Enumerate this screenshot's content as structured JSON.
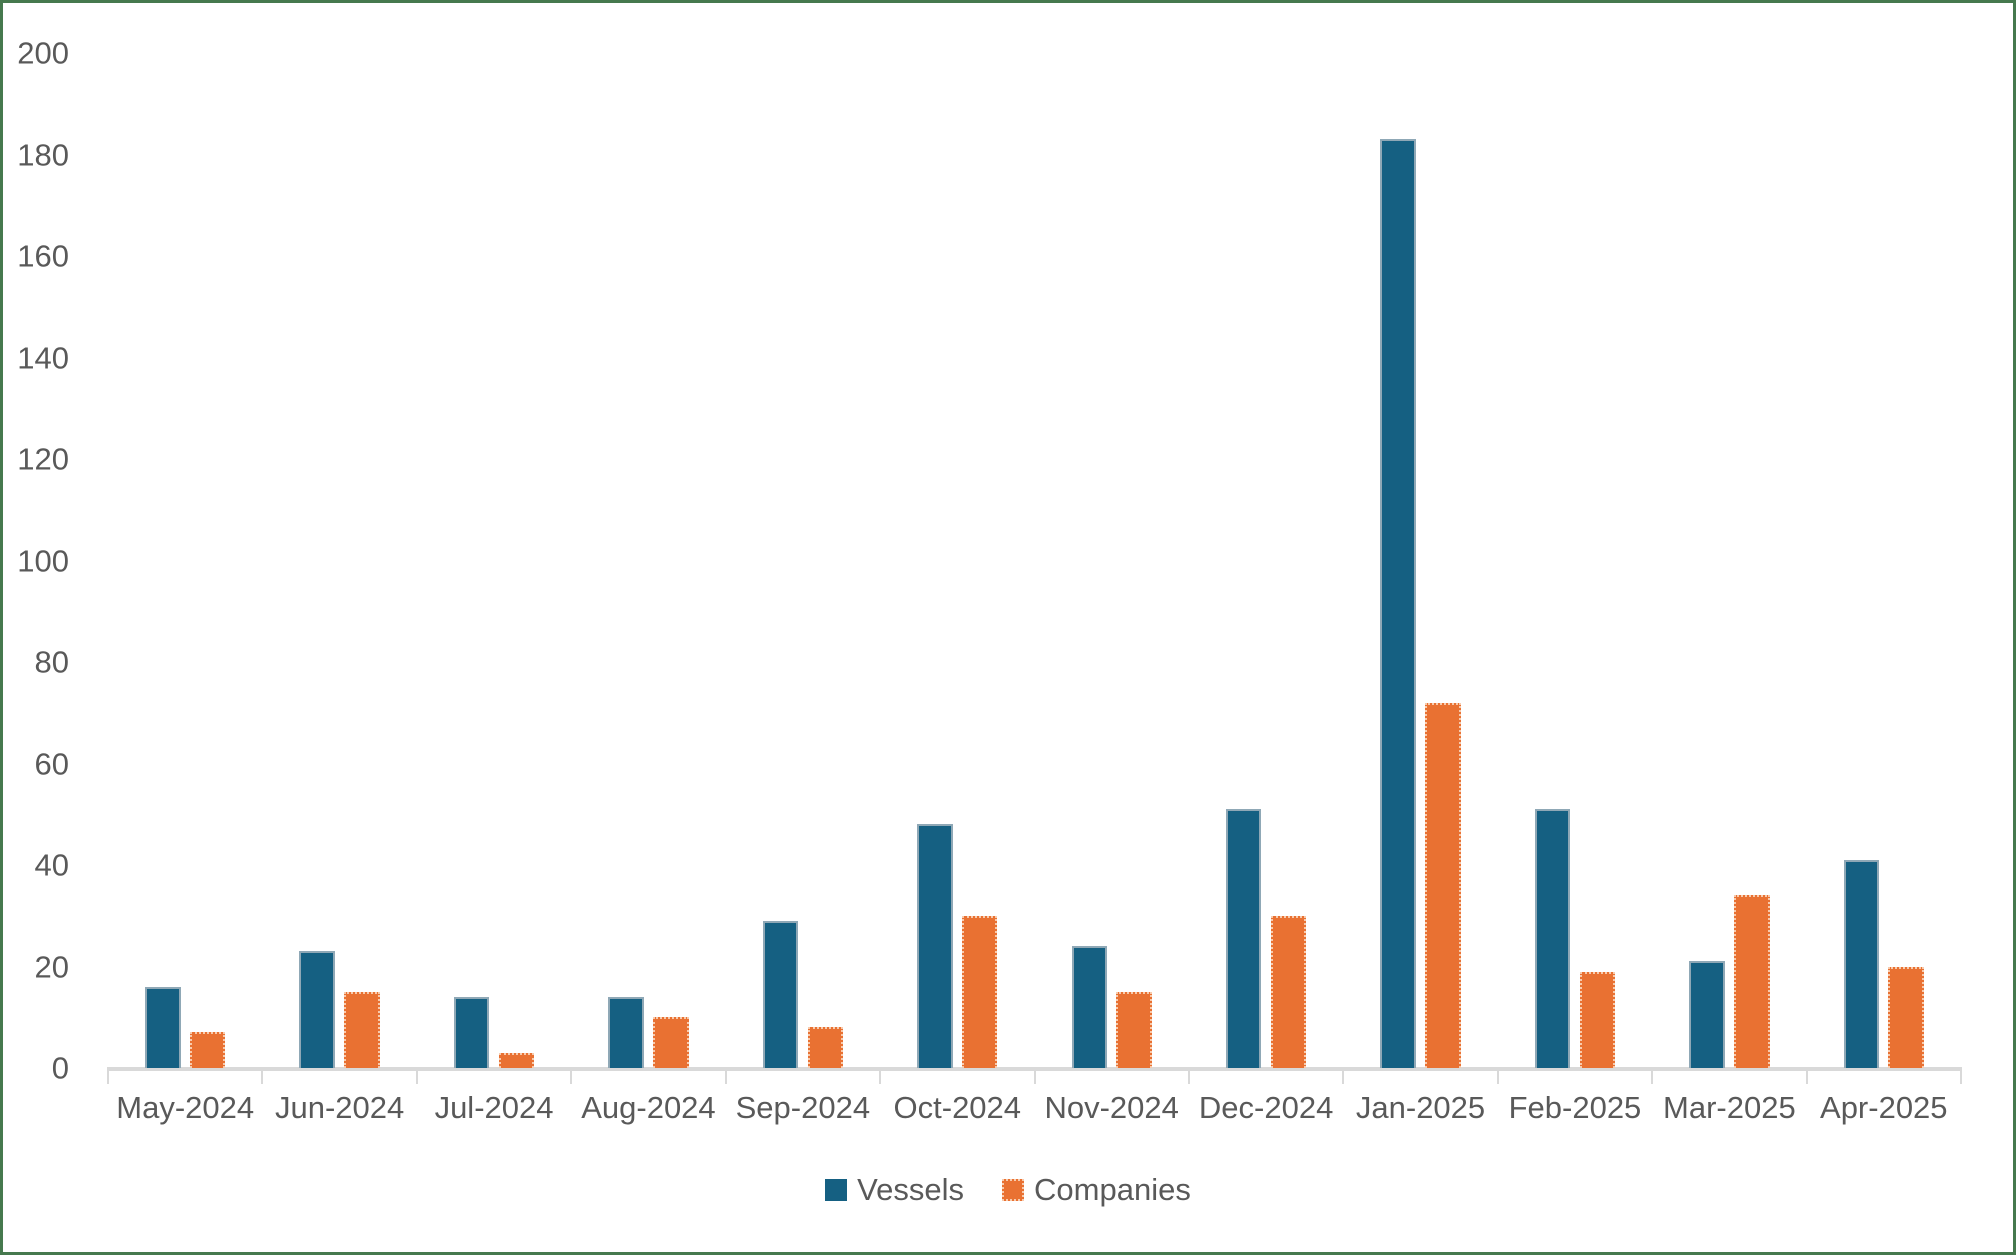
{
  "frame": {
    "background": "#FFFFFF",
    "border_color": "#46794E",
    "text_color": "#595959",
    "axis_color": "#D9D9D9"
  },
  "chart_data": {
    "type": "bar",
    "title": "",
    "xlabel": "",
    "ylabel": "",
    "categories": [
      "May-2024",
      "Jun-2024",
      "Jul-2024",
      "Aug-2024",
      "Sep-2024",
      "Oct-2024",
      "Nov-2024",
      "Dec-2024",
      "Jan-2025",
      "Feb-2025",
      "Mar-2025",
      "Apr-2025"
    ],
    "series": [
      {
        "name": "Vessels",
        "color": "#156082",
        "border_style": "solid",
        "border_color": "#8FA8B6",
        "values": [
          16,
          23,
          14,
          14,
          29,
          48,
          24,
          51,
          183,
          51,
          21,
          41
        ]
      },
      {
        "name": "Companies",
        "color": "#E97132",
        "border_style": "dotted",
        "border_color": "#F8CBAD",
        "values": [
          7,
          15,
          3,
          10,
          8,
          30,
          15,
          30,
          72,
          19,
          34,
          20
        ]
      }
    ],
    "ylim": [
      0,
      200
    ],
    "yticks": [
      0,
      20,
      40,
      60,
      80,
      100,
      120,
      140,
      160,
      180,
      200
    ],
    "grid": false,
    "legend_position": "bottom-center"
  }
}
